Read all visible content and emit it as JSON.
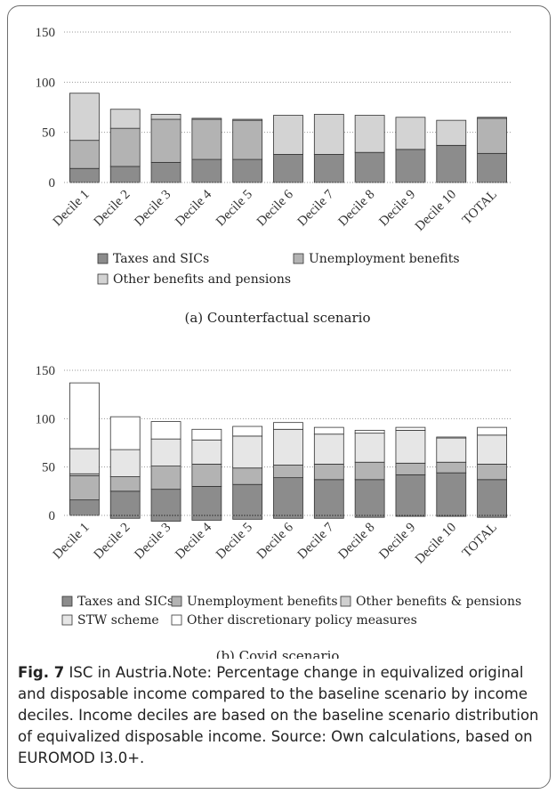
{
  "chart_data": [
    {
      "type": "bar",
      "stacked": true,
      "caption": "(a) Counterfactual scenario",
      "categories": [
        "Decile 1",
        "Decile 2",
        "Decile 3",
        "Decile 4",
        "Decile 5",
        "Decile 6",
        "Decile 7",
        "Decile 8",
        "Decile 9",
        "Decile 10",
        "TOTAL"
      ],
      "ylim": [
        0,
        150
      ],
      "yticks": [
        0,
        50,
        100,
        150
      ],
      "grid": true,
      "legend_position": "bottom",
      "series": [
        {
          "name": "Taxes and SICs",
          "color": "#8c8c8c",
          "values": [
            14,
            16,
            20,
            23,
            23,
            28,
            28,
            30,
            33,
            37,
            29
          ]
        },
        {
          "name": "Unemployment benefits",
          "color": "#b3b3b3",
          "values": [
            28,
            38,
            43,
            40,
            39,
            0,
            0,
            0,
            0,
            0,
            35
          ]
        },
        {
          "name": "Other benefits and pensions",
          "color": "#d3d3d3",
          "values": [
            47,
            19,
            5,
            1,
            1,
            39,
            40,
            37,
            32,
            25,
            1
          ]
        }
      ]
    },
    {
      "type": "bar",
      "stacked": true,
      "caption": "(b) Covid scenario",
      "categories": [
        "Decile 1",
        "Decile 2",
        "Decile 3",
        "Decile 4",
        "Decile 5",
        "Decile 6",
        "Decile 7",
        "Decile 8",
        "Decile 9",
        "Decile 10",
        "TOTAL"
      ],
      "ylim": [
        0,
        150
      ],
      "yticks": [
        0,
        50,
        100,
        150
      ],
      "grid": true,
      "legend_position": "bottom",
      "series": [
        {
          "name": "Taxes and SICs",
          "color": "#8c8c8c",
          "values": [
            16,
            25,
            27,
            30,
            32,
            39,
            37,
            37,
            42,
            44,
            37
          ],
          "negatives": [
            0,
            -3,
            -6,
            -5,
            -4,
            -3,
            -3,
            -2,
            -1,
            -1,
            -2
          ]
        },
        {
          "name": "Unemployment benefits",
          "color": "#b3b3b3",
          "values": [
            25,
            15,
            24,
            23,
            17,
            13,
            16,
            18,
            12,
            11,
            16
          ]
        },
        {
          "name": "Other benefits & pensions",
          "color": "#cfcfcf",
          "values": [
            2,
            0,
            0,
            0,
            0,
            0,
            0,
            0,
            0,
            0,
            0
          ]
        },
        {
          "name": "STW scheme",
          "color": "#e6e6e6",
          "values": [
            26,
            28,
            28,
            25,
            33,
            37,
            31,
            30,
            34,
            25,
            30
          ]
        },
        {
          "name": "Other discretionary policy measures",
          "color": "#ffffff",
          "values": [
            68,
            34,
            18,
            11,
            10,
            7,
            7,
            3,
            3,
            1,
            8
          ]
        }
      ]
    }
  ],
  "figure_caption": {
    "label": "Fig. 7",
    "text": " ISC in Austria.Note: Percentage change in equivalized original and disposable income compared to the baseline scenario by income deciles. Income deciles are based on the baseline scenario distribution of equivalized disposable income. Source: Own calculations, based on EUROMOD I3.0+."
  }
}
